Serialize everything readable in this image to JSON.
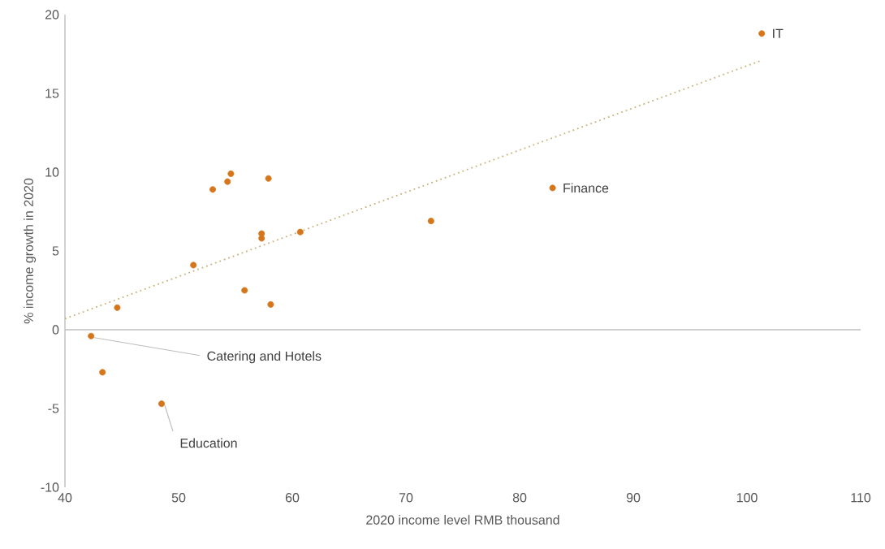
{
  "chart_data": {
    "type": "scatter",
    "xlabel": "2020 income level RMB thousand",
    "ylabel": "% income growth in 2020",
    "xlim": [
      40,
      110
    ],
    "xticks": [
      40,
      50,
      60,
      70,
      80,
      90,
      100,
      110
    ],
    "ylim": [
      -10,
      20
    ],
    "yticks": [
      -10,
      -5,
      0,
      5,
      10,
      15,
      20
    ],
    "grid": false,
    "legend": false,
    "ref_lines": [
      {
        "axis": "y",
        "value": 0,
        "color": "#bebebe"
      }
    ],
    "series": [
      {
        "marker": "circle",
        "color": "#d4761c",
        "x": [
          44.6,
          42.3,
          43.3,
          48.5,
          51.3,
          53.0,
          54.3,
          54.6,
          55.8,
          57.9,
          57.3,
          57.3,
          58.1,
          60.7,
          72.2,
          82.9,
          101.3
        ],
        "values": [
          1.4,
          -0.4,
          -2.7,
          -4.7,
          4.1,
          8.9,
          9.4,
          9.9,
          2.5,
          9.6,
          6.1,
          5.8,
          1.6,
          6.2,
          6.9,
          9.0,
          18.8
        ]
      },
      {
        "type": "line",
        "marker": "none",
        "color": "#c9b27a",
        "line_style": "dotted",
        "x": [
          40,
          101.3
        ],
        "values": [
          0.7,
          17.1
        ]
      }
    ],
    "annotations": [
      {
        "text": "IT",
        "x": 101.3,
        "y": 18.8
      },
      {
        "text": "Finance",
        "x": 82.9,
        "y": 9.0
      },
      {
        "text": "Catering and Hotels",
        "x": 42.3,
        "y": -0.4
      },
      {
        "text": "Education",
        "x": 48.5,
        "y": -4.7
      }
    ]
  }
}
